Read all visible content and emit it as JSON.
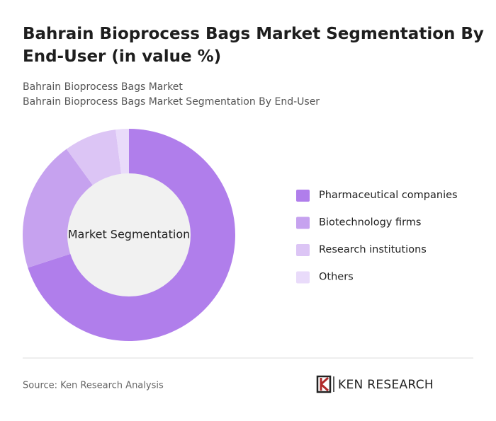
{
  "chart_data": {
    "type": "donut",
    "title": "Bahrain Bioprocess Bags Market Segmentation By End-User (in value %)",
    "subtitle": [
      "Bahrain Bioprocess Bags Market",
      "Bahrain Bioprocess Bags Market Segmentation By End-User"
    ],
    "center_label": "Market Segmentation",
    "categories": [
      "Pharmaceutical companies",
      "Biotechnology firms",
      "Research institutions",
      "Others"
    ],
    "values": [
      70,
      20,
      8,
      2
    ],
    "colors": [
      "#b07eeb",
      "#c6a2ef",
      "#dcc5f5",
      "#e9dbfa"
    ],
    "legend": "right"
  },
  "footer": {
    "source": "Source: Ken Research Analysis",
    "brand": "KEN RESEARCH"
  }
}
